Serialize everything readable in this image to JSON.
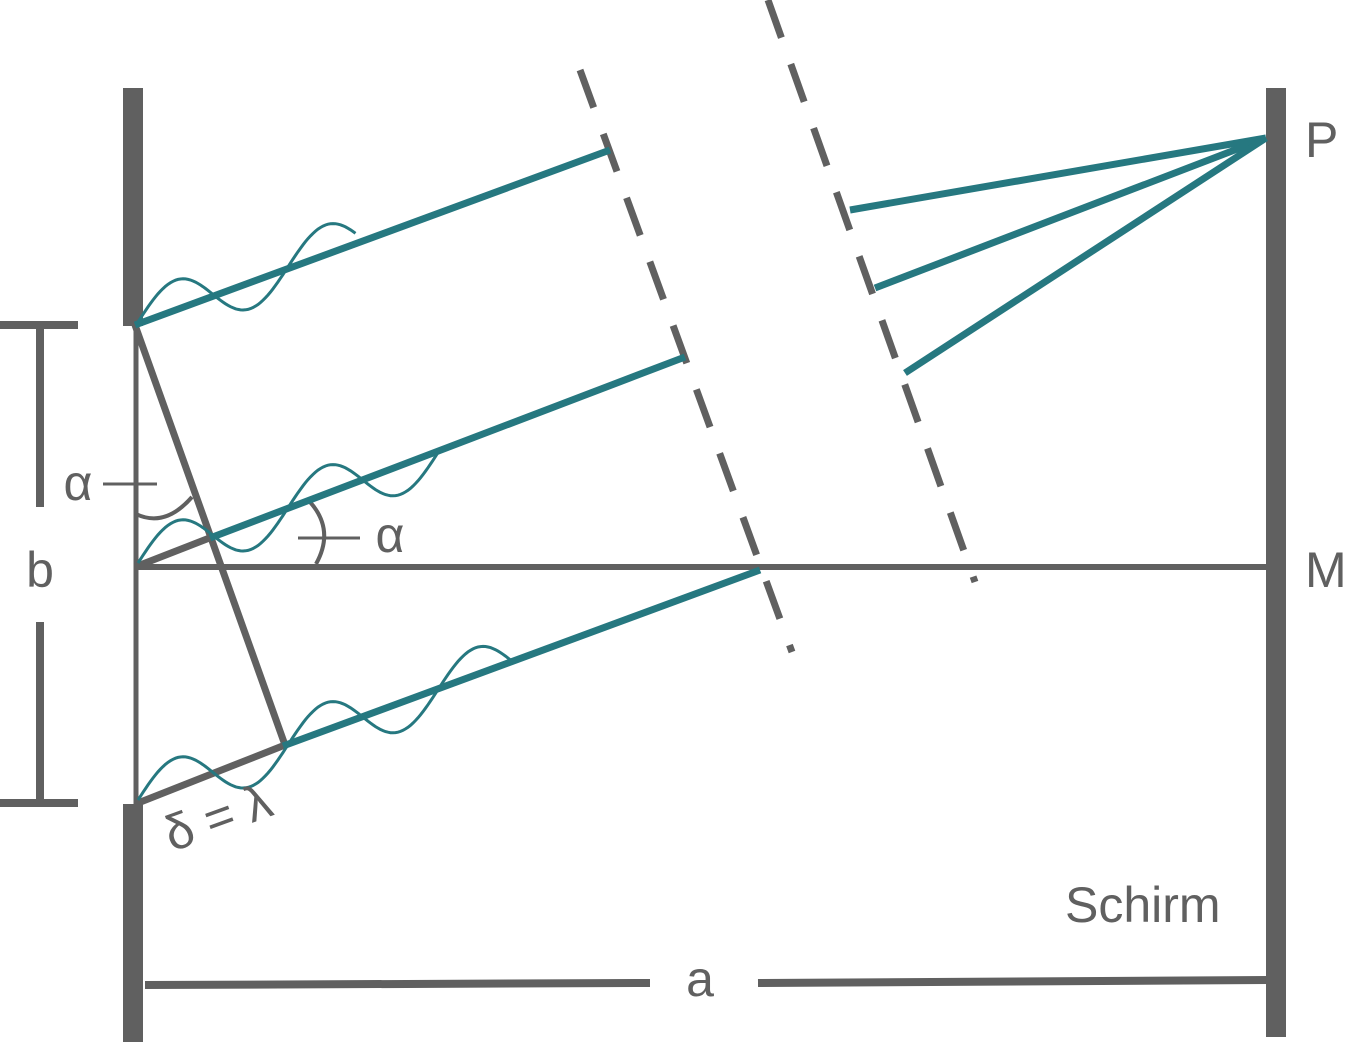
{
  "labels": {
    "b": "b",
    "a": "a",
    "alpha_left": "α",
    "alpha_right": "α",
    "path_difference": "δ = λ",
    "point_p": "P",
    "point_m": "M",
    "screen": "Schirm"
  },
  "colors": {
    "structure": "#606060",
    "rays": "#267880"
  }
}
